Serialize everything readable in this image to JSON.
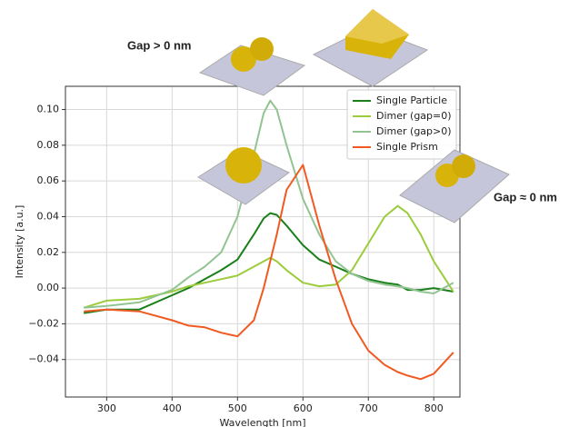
{
  "chart_data": {
    "type": "line",
    "annotations": [
      "Gap > 0 nm",
      "Gap ≈ 0 nm"
    ],
    "xlabel": "Wavelength [nm]",
    "ylabel": "Intensity [a.u.]",
    "x": [
      265,
      300,
      350,
      400,
      425,
      450,
      475,
      500,
      525,
      540,
      550,
      560,
      575,
      600,
      625,
      650,
      675,
      700,
      725,
      745,
      760,
      780,
      800,
      830
    ],
    "series": [
      {
        "name": "Single Particle",
        "color": "#1a7f1a",
        "values": [
          -0.014,
          -0.012,
          -0.012,
          -0.004,
          0.0,
          0.005,
          0.01,
          0.016,
          0.03,
          0.039,
          0.042,
          0.041,
          0.035,
          0.024,
          0.016,
          0.012,
          0.008,
          0.005,
          0.003,
          0.002,
          -0.001,
          -0.001,
          0.0,
          -0.002
        ]
      },
      {
        "name": "Dimer (gap=0)",
        "color": "#9ccc3c",
        "values": [
          -0.011,
          -0.007,
          -0.006,
          -0.002,
          0.001,
          0.003,
          0.005,
          0.007,
          0.012,
          0.015,
          0.017,
          0.015,
          0.01,
          0.003,
          0.001,
          0.002,
          0.01,
          0.025,
          0.04,
          0.046,
          0.042,
          0.03,
          0.015,
          -0.002
        ]
      },
      {
        "name": "Dimer (gap>0)",
        "color": "#92c492",
        "values": [
          -0.011,
          -0.01,
          -0.008,
          -0.001,
          0.006,
          0.012,
          0.02,
          0.04,
          0.075,
          0.098,
          0.105,
          0.1,
          0.08,
          0.05,
          0.03,
          0.015,
          0.008,
          0.004,
          0.002,
          0.001,
          0.0,
          -0.002,
          -0.003,
          0.003
        ]
      },
      {
        "name": "Single Prism",
        "color": "#f05a22",
        "values": [
          -0.013,
          -0.012,
          -0.013,
          -0.018,
          -0.021,
          -0.022,
          -0.025,
          -0.027,
          -0.018,
          0.0,
          0.015,
          0.03,
          0.055,
          0.069,
          0.035,
          0.005,
          -0.02,
          -0.035,
          -0.043,
          -0.047,
          -0.049,
          -0.051,
          -0.048,
          -0.036
        ]
      }
    ],
    "xlim": [
      237,
      840
    ],
    "xticks": [
      300,
      400,
      500,
      600,
      700,
      800
    ],
    "ylim": [
      -0.061,
      0.113
    ],
    "yticks": [
      {
        "value": -0.04,
        "label": "−0.04"
      },
      {
        "value": -0.02,
        "label": "−0.02"
      },
      {
        "value": 0,
        "label": "0.00"
      },
      {
        "value": 0.02,
        "label": "0.02"
      },
      {
        "value": 0.04,
        "label": "0.04"
      },
      {
        "value": 0.06,
        "label": "0.06"
      },
      {
        "value": 0.08,
        "label": "0.08"
      },
      {
        "value": 0.1,
        "label": "0.10"
      }
    ],
    "grid": true,
    "legend": "upper right"
  }
}
